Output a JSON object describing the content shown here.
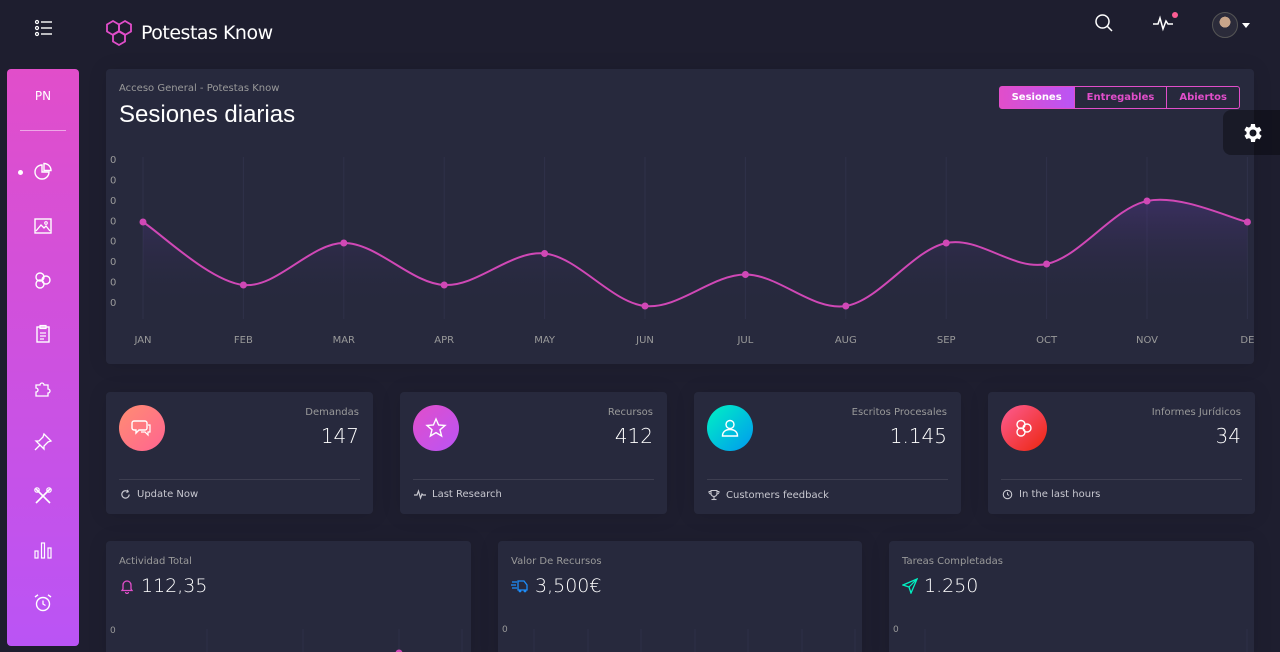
{
  "brand": {
    "name": "Potestas Know"
  },
  "sidebar": {
    "logo": "PN",
    "items": [
      {
        "icon": "chart-pie-icon"
      },
      {
        "icon": "image-icon"
      },
      {
        "icon": "atom-icon"
      },
      {
        "icon": "clipboard-icon"
      },
      {
        "icon": "puzzle-icon"
      },
      {
        "icon": "pin-icon"
      },
      {
        "icon": "tools-icon"
      },
      {
        "icon": "bar-chart-icon"
      },
      {
        "icon": "alarm-icon"
      }
    ]
  },
  "main_chart": {
    "category": "Acceso General - Potestas Know",
    "title": "Sesiones diarias",
    "tabs": [
      "Sesiones",
      "Entregables",
      "Abiertos"
    ],
    "active_tab": 0
  },
  "chart_data": {
    "type": "line",
    "categories": [
      "JAN",
      "FEB",
      "MAR",
      "APR",
      "MAY",
      "JUN",
      "JUL",
      "AUG",
      "SEP",
      "OCT",
      "NOV",
      "DE"
    ],
    "series": [
      {
        "values": [
          4,
          1,
          3,
          1,
          2.5,
          0,
          1.5,
          0,
          3,
          2,
          5,
          4
        ]
      }
    ],
    "y_tick_labels": [
      "0",
      "0",
      "0",
      "0",
      "0",
      "0",
      "0",
      "0"
    ],
    "ylim": [
      0,
      7
    ],
    "grid": "vertical",
    "line_color": "#d048b6"
  },
  "stats": [
    {
      "label": "Demandas",
      "value": "147",
      "footer": "Update Now",
      "icon": "chat-bubbles-icon",
      "footer_icon": "refresh-icon",
      "gradient": [
        "#ff8d72",
        "#ff6491"
      ]
    },
    {
      "label": "Recursos",
      "value": "412",
      "footer": "Last Research",
      "icon": "star-icon",
      "footer_icon": "pulse-icon",
      "gradient": [
        "#e14eca",
        "#ba54f5"
      ]
    },
    {
      "label": "Escritos Procesales",
      "value": "1.145",
      "footer": "Customers feedback",
      "icon": "user-icon",
      "footer_icon": "trophy-icon",
      "gradient": [
        "#00f2c3",
        "#0098f0"
      ]
    },
    {
      "label": "Informes Jurídicos",
      "value": "34",
      "footer": "In the last hours",
      "icon": "molecule-icon",
      "footer_icon": "clock-icon",
      "gradient": [
        "#fd5d93",
        "#ec250d"
      ]
    }
  ],
  "bottom_cards": [
    {
      "category": "Actividad Total",
      "value": "112,35",
      "icon": "bell-icon",
      "icon_color": "#e14eca",
      "tick": "0"
    },
    {
      "category": "Valor De Recursos",
      "value": "3,500€",
      "icon": "delivery-icon",
      "icon_color": "#1d8cf8",
      "tick": "0"
    },
    {
      "category": "Tareas Completadas",
      "value": "1.250",
      "icon": "send-icon",
      "icon_color": "#00f2c3",
      "tick": "0"
    }
  ]
}
